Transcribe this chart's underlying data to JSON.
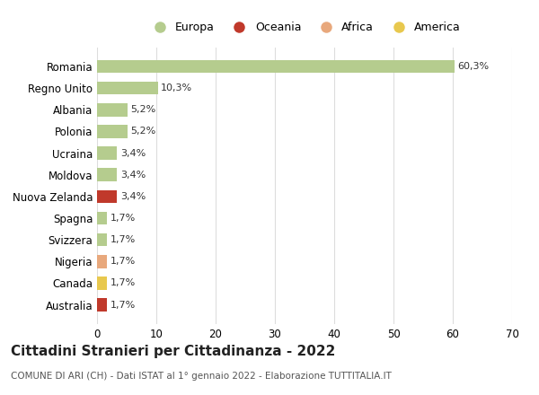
{
  "categories": [
    "Romania",
    "Regno Unito",
    "Albania",
    "Polonia",
    "Ucraina",
    "Moldova",
    "Nuova Zelanda",
    "Spagna",
    "Svizzera",
    "Nigeria",
    "Canada",
    "Australia"
  ],
  "values": [
    60.3,
    10.3,
    5.2,
    5.2,
    3.4,
    3.4,
    3.4,
    1.7,
    1.7,
    1.7,
    1.7,
    1.7
  ],
  "labels": [
    "60,3%",
    "10,3%",
    "5,2%",
    "5,2%",
    "3,4%",
    "3,4%",
    "3,4%",
    "1,7%",
    "1,7%",
    "1,7%",
    "1,7%",
    "1,7%"
  ],
  "colors": [
    "#b5cc8e",
    "#b5cc8e",
    "#b5cc8e",
    "#b5cc8e",
    "#b5cc8e",
    "#b5cc8e",
    "#c0392b",
    "#b5cc8e",
    "#b5cc8e",
    "#e8a87c",
    "#e8c84e",
    "#c0392b"
  ],
  "continent_colors": {
    "Europa": "#b5cc8e",
    "Oceania": "#c0392b",
    "Africa": "#e8a87c",
    "America": "#e8c84e"
  },
  "legend_order": [
    "Europa",
    "Oceania",
    "Africa",
    "America"
  ],
  "title": "Cittadini Stranieri per Cittadinanza - 2022",
  "subtitle": "COMUNE DI ARI (CH) - Dati ISTAT al 1° gennaio 2022 - Elaborazione TUTTITALIA.IT",
  "xlim": [
    0,
    70
  ],
  "xticks": [
    0,
    10,
    20,
    30,
    40,
    50,
    60,
    70
  ],
  "background_color": "#ffffff",
  "grid_color": "#dddddd",
  "bar_height": 0.6
}
